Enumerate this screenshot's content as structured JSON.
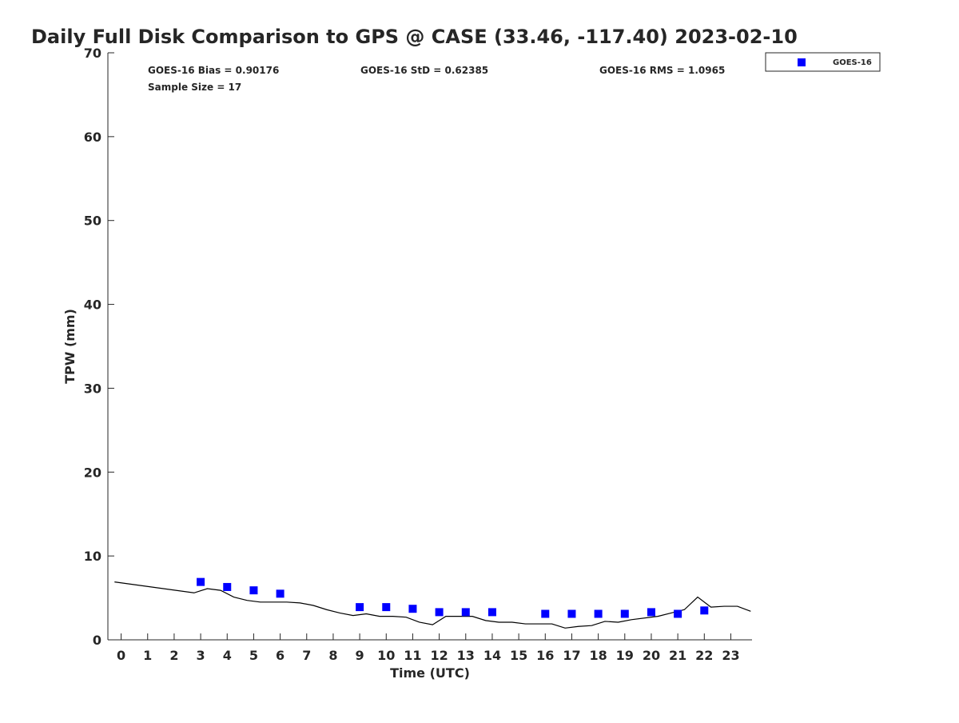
{
  "chart_data": {
    "type": "scatter",
    "title": "Daily Full Disk Comparison to GPS @ CASE (33.46, -117.40) 2023-02-10",
    "xlabel": "Time (UTC)",
    "ylabel": "TPW (mm)",
    "xlim": [
      -0.5,
      23.8
    ],
    "ylim": [
      0,
      70
    ],
    "xticks": [
      0,
      1,
      2,
      3,
      4,
      5,
      6,
      7,
      8,
      9,
      10,
      11,
      12,
      13,
      14,
      15,
      16,
      17,
      18,
      19,
      20,
      21,
      22,
      23
    ],
    "yticks": [
      0,
      10,
      20,
      30,
      40,
      50,
      60,
      70
    ],
    "stats": {
      "bias": "GOES-16 Bias = 0.90176",
      "std": "GOES-16 StD = 0.62385",
      "rms": "GOES-16 RMS = 1.0965",
      "sample": "Sample Size = 17"
    },
    "legend": {
      "placement": "top-right",
      "entries": [
        "GOES-16"
      ]
    },
    "series": [
      {
        "name": "GOES-16",
        "color": "#0000ff",
        "marker": "square",
        "x": [
          3,
          4,
          5,
          6,
          9,
          10,
          11,
          12,
          13,
          14,
          16,
          17,
          18,
          19,
          20,
          21,
          22
        ],
        "y": [
          6.9,
          6.3,
          5.9,
          5.5,
          3.9,
          3.9,
          3.7,
          3.3,
          3.3,
          3.3,
          3.1,
          3.1,
          3.1,
          3.1,
          3.3,
          3.1,
          3.5
        ]
      },
      {
        "name": "GPS",
        "color": "#000000",
        "marker": "line",
        "x": [
          -0.25,
          2.75,
          3.25,
          3.75,
          4.25,
          4.75,
          5.25,
          6.25,
          6.75,
          7.25,
          7.75,
          8.25,
          8.75,
          9.25,
          9.75,
          10.25,
          10.75,
          11.25,
          11.75,
          12.25,
          13.25,
          13.75,
          14.25,
          14.75,
          15.25,
          16.25,
          16.75,
          17.25,
          17.75,
          18.25,
          18.75,
          19.25,
          20.25,
          20.75,
          21.25,
          21.75,
          22.25,
          22.75,
          23.25,
          23.75
        ],
        "y": [
          6.9,
          5.6,
          6.1,
          5.9,
          5.1,
          4.7,
          4.5,
          4.5,
          4.4,
          4.1,
          3.6,
          3.2,
          2.9,
          3.1,
          2.8,
          2.8,
          2.7,
          2.1,
          1.8,
          2.8,
          2.8,
          2.3,
          2.1,
          2.1,
          1.9,
          1.9,
          1.4,
          1.6,
          1.7,
          2.2,
          2.1,
          2.4,
          2.8,
          3.2,
          3.6,
          5.1,
          3.9,
          4.0,
          4.0,
          3.4
        ]
      }
    ]
  }
}
